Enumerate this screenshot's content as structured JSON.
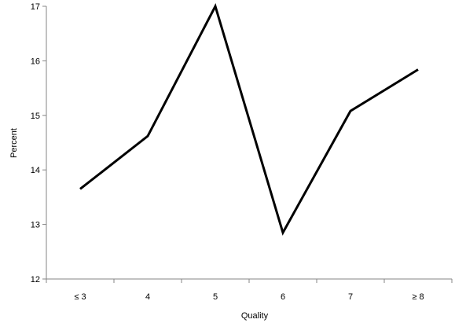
{
  "chart_data": {
    "type": "line",
    "title": "",
    "xlabel": "Quality",
    "ylabel": "Percent",
    "categories": [
      "≤ 3",
      "4",
      "5",
      "6",
      "7",
      "≥ 8"
    ],
    "series": [
      {
        "values": [
          13.65,
          14.62,
          17.0,
          12.85,
          15.08,
          15.84
        ]
      }
    ],
    "ylim": [
      12,
      17
    ],
    "yticks": [
      12,
      13,
      14,
      15,
      16,
      17
    ],
    "grid": false,
    "legend": "none",
    "colors": {
      "line": "#000000",
      "axis": "#868686"
    }
  }
}
